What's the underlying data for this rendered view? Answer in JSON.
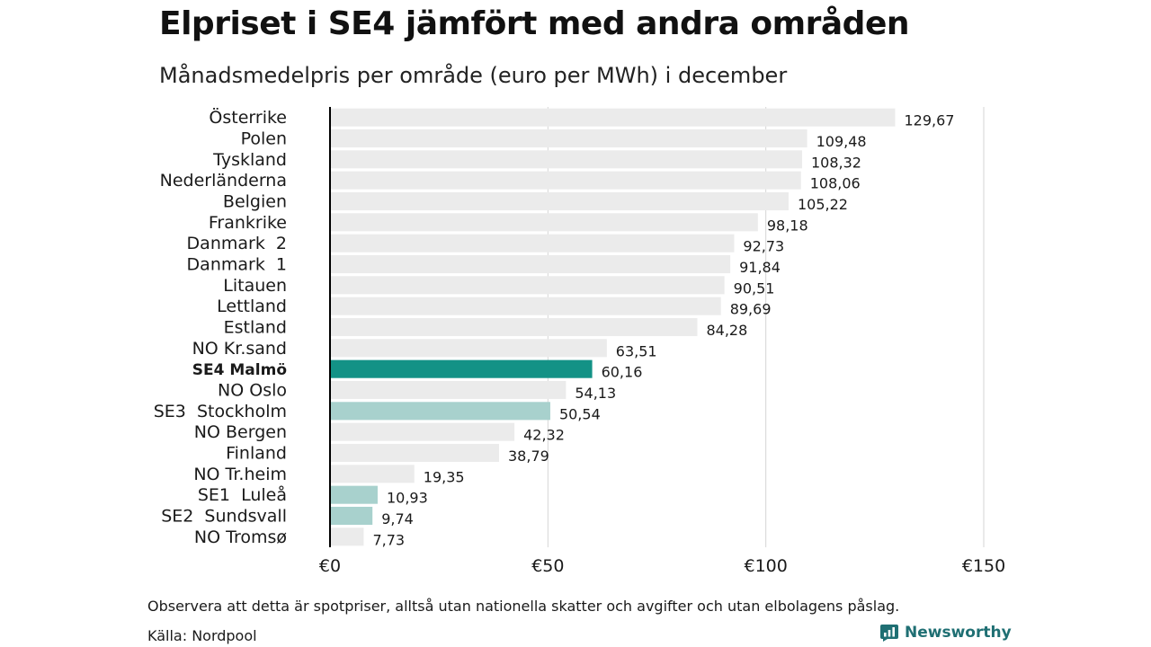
{
  "header": {
    "title": "Elpriset i SE4 jämfört med andra områden",
    "subtitle": "Månadsmedelpris per område (euro per MWh) i december"
  },
  "chart_data": {
    "type": "bar",
    "orientation": "horizontal",
    "title": "Elpriset i SE4 jämfört med andra områden",
    "subtitle": "Månadsmedelpris per område (euro per MWh) i december",
    "xlabel": "",
    "ylabel": "",
    "xlim": [
      0,
      150
    ],
    "x_ticks": [
      0,
      50,
      100,
      150
    ],
    "x_tick_labels": [
      "€0",
      "€50",
      "€100",
      "€150"
    ],
    "grid": "vertical",
    "categories": [
      "Österrike",
      "Polen",
      "Tyskland",
      "Nederländerna",
      "Belgien",
      "Frankrike",
      "Danmark  2",
      "Danmark  1",
      "Litauen",
      "Lettland",
      "Estland",
      "NO Kr.sand",
      "SE4 Malmö",
      "NO Oslo",
      "SE3  Stockholm",
      "NO Bergen",
      "Finland",
      "NO Tr.heim",
      "SE1  Luleå",
      "SE2  Sundsvall",
      "NO Tromsø"
    ],
    "values": [
      129.67,
      109.48,
      108.32,
      108.06,
      105.22,
      98.18,
      92.73,
      91.84,
      90.51,
      89.69,
      84.28,
      63.51,
      60.16,
      54.13,
      50.54,
      42.32,
      38.79,
      19.35,
      10.93,
      9.74,
      7.73
    ],
    "value_labels": [
      "129,67",
      "109,48",
      "108,32",
      "108,06",
      "105,22",
      "98,18",
      "92,73",
      "91,84",
      "90,51",
      "89,69",
      "84,28",
      "63,51",
      "60,16",
      "54,13",
      "50,54",
      "42,32",
      "38,79",
      "19,35",
      "10,93",
      "9,74",
      "7,73"
    ],
    "highlight": [
      0,
      0,
      0,
      0,
      0,
      0,
      0,
      0,
      0,
      0,
      0,
      0,
      2,
      0,
      1,
      0,
      0,
      0,
      1,
      1,
      0
    ],
    "colors": {
      "default": "#ebebeb",
      "se_area": "#a8d1cd",
      "se4": "#139286",
      "grid": "#d6d6d6",
      "axis": "#000000"
    }
  },
  "footer": {
    "note": "Observera att detta är spotpriser, alltså utan nationella skatter och avgifter och utan elbolagens påslag.",
    "source": "Källa: Nordpool",
    "brand": "Newsworthy"
  },
  "icons": {
    "brand_logo": "newsworthy-logo-icon"
  }
}
